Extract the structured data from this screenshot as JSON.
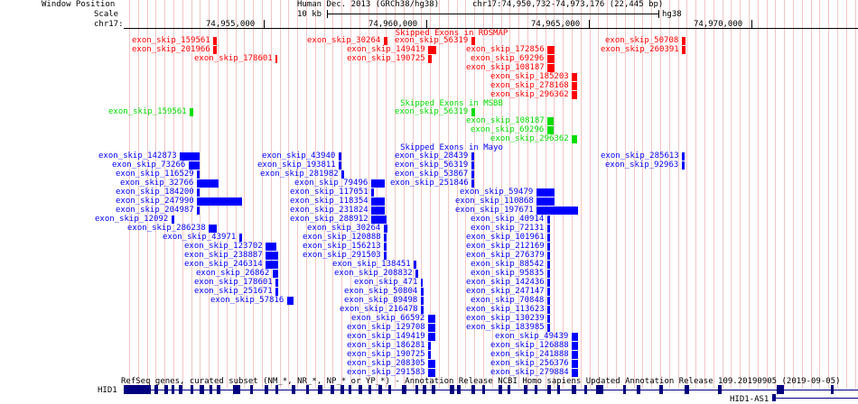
{
  "header": {
    "window_position_label": "Window Position",
    "scale_label": "Scale",
    "chrom_label": "chr17:",
    "assembly": "Human Dec. 2013 (GRCh38/hg38)",
    "position": "chr17:74,950,732-74,973,176 (22,445 bp)",
    "scale_text": "10 kb",
    "scale_db": "hg38",
    "ticks": [
      "74,955,000",
      "74,960,000",
      "74,965,000",
      "74,970,000"
    ]
  },
  "tracks": {
    "rosmap": {
      "title": "Skipped Exons in ROSMAP",
      "color": "#ff0000",
      "items": [
        {
          "name": "exon_skip_159561",
          "row": 0,
          "s": 236,
          "w": 4
        },
        {
          "name": "exon_skip_201966",
          "row": 1,
          "s": 236,
          "w": 4
        },
        {
          "name": "exon_skip_178601",
          "row": 2,
          "s": 305,
          "w": 2
        },
        {
          "name": "exon_skip_30264",
          "row": 0,
          "s": 425,
          "w": 4
        },
        {
          "name": "exon_skip_149419",
          "row": 1,
          "s": 474,
          "w": 9
        },
        {
          "name": "exon_skip_190725",
          "row": 2,
          "s": 474,
          "w": 4
        },
        {
          "name": "exon_skip_56319",
          "row": 0,
          "s": 522,
          "w": 4
        },
        {
          "name": "exon_skip_172856",
          "row": 1,
          "s": 606,
          "w": 8
        },
        {
          "name": "exon_skip_69296",
          "row": 2,
          "s": 606,
          "w": 8
        },
        {
          "name": "exon_skip_108187",
          "row": 3,
          "s": 606,
          "w": 8
        },
        {
          "name": "exon_skip_185203",
          "row": 4,
          "s": 633,
          "w": 6
        },
        {
          "name": "exon_skip_278168",
          "row": 5,
          "s": 633,
          "w": 6
        },
        {
          "name": "exon_skip_296362",
          "row": 6,
          "s": 633,
          "w": 6
        },
        {
          "name": "exon_skip_50708",
          "row": 0,
          "s": 755,
          "w": 4
        },
        {
          "name": "exon_skip_260391",
          "row": 1,
          "s": 755,
          "w": 4
        }
      ]
    },
    "msbb": {
      "title": "Skipped Exons in MSBB",
      "color": "#00dd00",
      "items": [
        {
          "name": "exon_skip_159561",
          "row": 0,
          "s": 210,
          "w": 4
        },
        {
          "name": "exon_skip_56319",
          "row": 0,
          "s": 522,
          "w": 4
        },
        {
          "name": "exon_skip_108187",
          "row": 1,
          "s": 606,
          "w": 7
        },
        {
          "name": "exon_skip_69296",
          "row": 2,
          "s": 606,
          "w": 7
        },
        {
          "name": "exon_skip_296362",
          "row": 3,
          "s": 633,
          "w": 6
        }
      ]
    },
    "mayo": {
      "title": "Skipped Exons in Mayo",
      "color": "#0000ff",
      "items": [
        {
          "name": "exon_skip_142873",
          "row": 0,
          "s": 199,
          "w": 22
        },
        {
          "name": "exon_skip_73266",
          "row": 1,
          "s": 209,
          "w": 12
        },
        {
          "name": "exon_skip_116529",
          "row": 2,
          "s": 218,
          "w": 3
        },
        {
          "name": "exon_skip_32766",
          "row": 3,
          "s": 218,
          "w": 24
        },
        {
          "name": "exon_skip_184200",
          "row": 4,
          "s": 218,
          "w": 3
        },
        {
          "name": "exon_skip_247990",
          "row": 5,
          "s": 218,
          "w": 50
        },
        {
          "name": "exon_skip_204987",
          "row": 6,
          "s": 218,
          "w": 3
        },
        {
          "name": "exon_skip_12092",
          "row": 7,
          "s": 190,
          "w": 3
        },
        {
          "name": "exon_skip_286238",
          "row": 8,
          "s": 231,
          "w": 9
        },
        {
          "name": "exon_skip_43971",
          "row": 9,
          "s": 265,
          "w": 3
        },
        {
          "name": "exon_skip_123702",
          "row": 10,
          "s": 294,
          "w": 12
        },
        {
          "name": "exon_skip_238887",
          "row": 11,
          "s": 294,
          "w": 14
        },
        {
          "name": "exon_skip_246314",
          "row": 12,
          "s": 294,
          "w": 14
        },
        {
          "name": "exon_skip_26862",
          "row": 13,
          "s": 302,
          "w": 6
        },
        {
          "name": "exon_skip_178601",
          "row": 14,
          "s": 305,
          "w": 3
        },
        {
          "name": "exon_skip_251671",
          "row": 15,
          "s": 305,
          "w": 3
        },
        {
          "name": "exon_skip_57816",
          "row": 16,
          "s": 318,
          "w": 7
        },
        {
          "name": "exon_skip_43940",
          "row": 0,
          "s": 375,
          "w": 3
        },
        {
          "name": "exon_skip_193811",
          "row": 1,
          "s": 375,
          "w": 3
        },
        {
          "name": "exon_skip_281982",
          "row": 2,
          "s": 378,
          "w": 3
        },
        {
          "name": "exon_skip_79496",
          "row": 3,
          "s": 411,
          "w": 15
        },
        {
          "name": "exon_skip_117051",
          "row": 4,
          "s": 411,
          "w": 3
        },
        {
          "name": "exon_skip_118354",
          "row": 5,
          "s": 411,
          "w": 15
        },
        {
          "name": "exon_skip_231824",
          "row": 6,
          "s": 411,
          "w": 15
        },
        {
          "name": "exon_skip_288912",
          "row": 7,
          "s": 411,
          "w": 17
        },
        {
          "name": "exon_skip_30264",
          "row": 8,
          "s": 425,
          "w": 4
        },
        {
          "name": "exon_skip_120888",
          "row": 9,
          "s": 425,
          "w": 3
        },
        {
          "name": "exon_skip_156213",
          "row": 10,
          "s": 425,
          "w": 3
        },
        {
          "name": "exon_skip_291503",
          "row": 11,
          "s": 425,
          "w": 3
        },
        {
          "name": "exon_skip_138451",
          "row": 12,
          "s": 458,
          "w": 3
        },
        {
          "name": "exon_skip_208832",
          "row": 13,
          "s": 460,
          "w": 3
        },
        {
          "name": "exon_skip_471",
          "row": 14,
          "s": 466,
          "w": 2
        },
        {
          "name": "exon_skip_50804",
          "row": 15,
          "s": 466,
          "w": 3
        },
        {
          "name": "exon_skip_89498",
          "row": 16,
          "s": 466,
          "w": 3
        },
        {
          "name": "exon_skip_216478",
          "row": 17,
          "s": 466,
          "w": 3
        },
        {
          "name": "exon_skip_66592",
          "row": 18,
          "s": 474,
          "w": 8
        },
        {
          "name": "exon_skip_129708",
          "row": 19,
          "s": 474,
          "w": 8
        },
        {
          "name": "exon_skip_149419",
          "row": 20,
          "s": 474,
          "w": 8
        },
        {
          "name": "exon_skip_186281",
          "row": 21,
          "s": 474,
          "w": 3
        },
        {
          "name": "exon_skip_190725",
          "row": 22,
          "s": 474,
          "w": 3
        },
        {
          "name": "exon_skip_208305",
          "row": 23,
          "s": 474,
          "w": 8
        },
        {
          "name": "exon_skip_291583",
          "row": 24,
          "s": 474,
          "w": 8
        },
        {
          "name": "exon_skip_28439",
          "row": 0,
          "s": 522,
          "w": 3
        },
        {
          "name": "exon_skip_56319",
          "row": 1,
          "s": 522,
          "w": 3
        },
        {
          "name": "exon_skip_53867",
          "row": 2,
          "s": 522,
          "w": 3
        },
        {
          "name": "exon_skip_251846",
          "row": 3,
          "s": 522,
          "w": 3
        },
        {
          "name": "exon_skip_59479",
          "row": 4,
          "s": 594,
          "w": 20
        },
        {
          "name": "exon_skip_110868",
          "row": 5,
          "s": 594,
          "w": 20
        },
        {
          "name": "exon_skip_197671",
          "row": 6,
          "s": 594,
          "w": 46
        },
        {
          "name": "exon_skip_40914",
          "row": 7,
          "s": 606,
          "w": 3
        },
        {
          "name": "exon_skip_72131",
          "row": 8,
          "s": 606,
          "w": 3
        },
        {
          "name": "exon_skip_101961",
          "row": 9,
          "s": 606,
          "w": 3
        },
        {
          "name": "exon_skip_212169",
          "row": 10,
          "s": 606,
          "w": 3
        },
        {
          "name": "exon_skip_276379",
          "row": 11,
          "s": 606,
          "w": 3
        },
        {
          "name": "exon_skip_88542",
          "row": 12,
          "s": 606,
          "w": 3
        },
        {
          "name": "exon_skip_95835",
          "row": 13,
          "s": 606,
          "w": 3
        },
        {
          "name": "exon_skip_142436",
          "row": 14,
          "s": 606,
          "w": 3
        },
        {
          "name": "exon_skip_247147",
          "row": 15,
          "s": 606,
          "w": 3
        },
        {
          "name": "exon_skip_70848",
          "row": 16,
          "s": 606,
          "w": 3
        },
        {
          "name": "exon_skip_113623",
          "row": 17,
          "s": 606,
          "w": 3
        },
        {
          "name": "exon_skip_130239",
          "row": 18,
          "s": 606,
          "w": 3
        },
        {
          "name": "exon_skip_183985",
          "row": 19,
          "s": 606,
          "w": 3
        },
        {
          "name": "exon_skip_49439",
          "row": 20,
          "s": 633,
          "w": 7
        },
        {
          "name": "exon_skip_126888",
          "row": 21,
          "s": 633,
          "w": 7
        },
        {
          "name": "exon_skip_241888",
          "row": 22,
          "s": 633,
          "w": 7
        },
        {
          "name": "exon_skip_256376",
          "row": 23,
          "s": 633,
          "w": 7
        },
        {
          "name": "exon_skip_279884",
          "row": 24,
          "s": 633,
          "w": 7
        },
        {
          "name": "exon_skip_285613",
          "row": 0,
          "s": 755,
          "w": 3
        },
        {
          "name": "exon_skip_92963",
          "row": 1,
          "s": 755,
          "w": 3
        }
      ]
    }
  },
  "refseq": {
    "title": "RefSeq genes, curated subset (NM_*, NR_*, NP_* or YP_*) - Annotation Release NCBI Homo sapiens Updated Annotation Release 109.20190905 (2019-09-05)",
    "gene1": "HID1",
    "gene2": "HID1-AS1"
  }
}
